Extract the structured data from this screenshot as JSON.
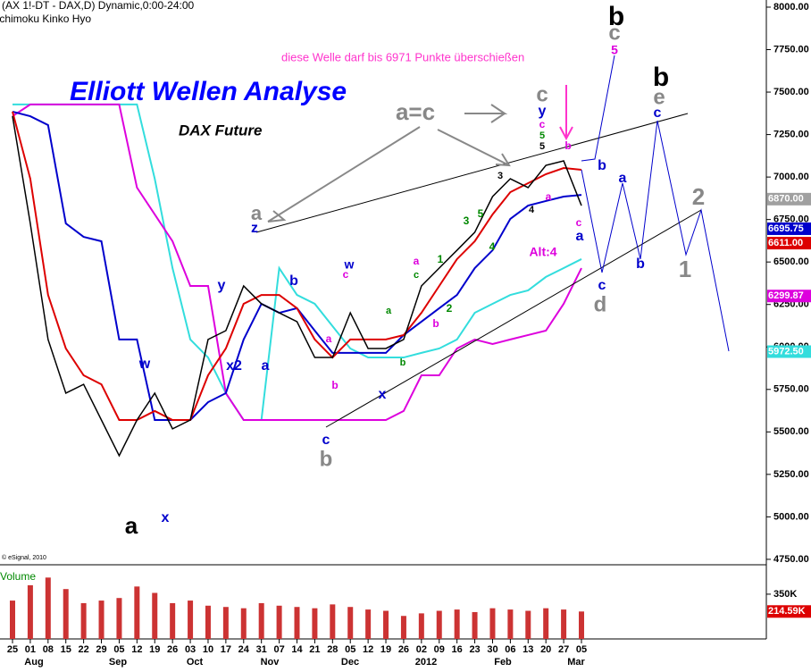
{
  "chart_data": {
    "type": "line",
    "header": "(AX 1!-DT - DAX,D) Dynamic,0:00-24:00",
    "indicator": "Ichimoku Kinko Hyo",
    "title": "Elliott Wellen Analyse",
    "subtitle": "DAX Future",
    "note": "diese Welle darf bis 6971 Punkte überschießen",
    "copyright": "© eSignal, 2010",
    "volume_label": "Volume",
    "categories": [
      "25",
      "01",
      "08",
      "15",
      "22",
      "29",
      "05",
      "12",
      "19",
      "26",
      "03",
      "10",
      "17",
      "24",
      "31",
      "07",
      "14",
      "21",
      "28",
      "05",
      "12",
      "19",
      "26",
      "02",
      "09",
      "16",
      "23",
      "30",
      "06",
      "13",
      "20",
      "27",
      "05"
    ],
    "months": [
      "Aug",
      "Sep",
      "Oct",
      "Nov",
      "Dec",
      "2012",
      "Feb",
      "Mar"
    ],
    "ylim": [
      4718,
      8042
    ],
    "yticks": [
      {
        "value": 4750,
        "label": "4750.00"
      },
      {
        "value": 5000,
        "label": "5000.00"
      },
      {
        "value": 5250,
        "label": "5250.00"
      },
      {
        "value": 5500,
        "label": "5500.00"
      },
      {
        "value": 5750,
        "label": "5750.00"
      },
      {
        "value": 6000,
        "label": "6000.00"
      },
      {
        "value": 6250,
        "label": "6250.00"
      },
      {
        "value": 6500,
        "label": "6500.00"
      },
      {
        "value": 6750,
        "label": "6750.00"
      },
      {
        "value": 7000,
        "label": "7000.00"
      },
      {
        "value": 7250,
        "label": "7250.00"
      },
      {
        "value": 7500,
        "label": "7500.00"
      },
      {
        "value": 7750,
        "label": "7750.00"
      },
      {
        "value": 8000,
        "label": "8000.00"
      }
    ],
    "price_markers": [
      {
        "value": 6870,
        "label": "6870.00",
        "color": "#a0a0a0"
      },
      {
        "value": 6695.75,
        "label": "6695.75",
        "color": "#0000cc"
      },
      {
        "value": 6611,
        "label": "6611.00",
        "color": "#dd0000"
      },
      {
        "value": 6299.87,
        "label": "6299.87",
        "color": "#dd00dd"
      },
      {
        "value": 5972.5,
        "label": "5972.50",
        "color": "#33dddd"
      }
    ],
    "series": [
      {
        "name": "Senkou A",
        "color": "#33dddd",
        "values": [
          7427,
          7427,
          7427,
          7427,
          7427,
          7427,
          7427,
          7427,
          6990,
          6464,
          6044,
          5938,
          5728,
          5570,
          5570,
          6464,
          6306,
          6254,
          6122,
          5991,
          5938,
          5938,
          5938,
          5965,
          5991,
          6044,
          6201,
          6254,
          6306,
          6333,
          6412,
          6464,
          6517
        ]
      },
      {
        "name": "Senkou B",
        "color": "#dd00dd",
        "values": [
          7358,
          7427,
          7427,
          7427,
          7427,
          7427,
          7427,
          6938,
          6780,
          6622,
          6359,
          6359,
          5728,
          5570,
          5570,
          5570,
          5570,
          5570,
          5570,
          5570,
          5570,
          5570,
          5623,
          5833,
          5833,
          5991,
          6044,
          6017,
          6044,
          6070,
          6096,
          6254,
          6464
        ]
      },
      {
        "name": "Kijun",
        "color": "#0000cc",
        "values": [
          7385,
          7358,
          7306,
          6727,
          6648,
          6622,
          6044,
          6044,
          5570,
          5570,
          5570,
          5675,
          5728,
          6044,
          6254,
          6201,
          6228,
          6096,
          5965,
          5965,
          5965,
          5965,
          6070,
          6149,
          6228,
          6306,
          6464,
          6569,
          6754,
          6832,
          6859,
          6885,
          6895
        ]
      },
      {
        "name": "Tenkan",
        "color": "#dd0000",
        "values": [
          7385,
          6990,
          6306,
          5991,
          5833,
          5780,
          5570,
          5570,
          5623,
          5570,
          5570,
          5833,
          5991,
          6254,
          6306,
          6306,
          6228,
          6044,
          5938,
          6044,
          6044,
          6044,
          6070,
          6201,
          6359,
          6517,
          6622,
          6780,
          6911,
          6964,
          7017,
          7053,
          7043
        ]
      },
      {
        "name": "DAX",
        "color": "#000000",
        "values": [
          7358,
          6727,
          6044,
          5728,
          5780,
          5570,
          5360,
          5570,
          5728,
          5518,
          5570,
          6044,
          6096,
          6359,
          6254,
          6201,
          6149,
          5938,
          5938,
          6201,
          5991,
          5991,
          6044,
          6359,
          6464,
          6569,
          6675,
          6885,
          6990,
          6938,
          7069,
          7095,
          6832
        ]
      }
    ],
    "volume": {
      "color": "#cc3333",
      "ylim": [
        0,
        580000
      ],
      "yticks": [
        {
          "value": 350000,
          "label": "350K"
        }
      ],
      "last": {
        "value": 214590,
        "label": "214.59K"
      },
      "values": [
        300000,
        420000,
        480000,
        390000,
        280000,
        300000,
        320000,
        410000,
        360000,
        280000,
        300000,
        260000,
        250000,
        240000,
        280000,
        260000,
        250000,
        240000,
        270000,
        250000,
        230000,
        220000,
        180000,
        200000,
        220000,
        230000,
        210000,
        240000,
        230000,
        220000,
        240000,
        230000,
        214590
      ]
    },
    "annotations": [
      {
        "text": "a=c",
        "color": "#888888"
      },
      {
        "text": "Alt:4",
        "color": "#dd00dd"
      },
      {
        "text": "a",
        "color": "#000000"
      },
      {
        "text": "x",
        "color": "#0000cc"
      },
      {
        "text": "w",
        "color": "#0000cc"
      },
      {
        "text": "y",
        "color": "#0000cc"
      },
      {
        "text": "x2",
        "color": "#0000cc"
      },
      {
        "text": "a",
        "color": "#0000cc"
      },
      {
        "text": "b",
        "color": "#0000cc"
      },
      {
        "text": "a",
        "color": "#888888"
      },
      {
        "text": "z",
        "color": "#0000cc"
      },
      {
        "text": "c",
        "color": "#0000cc"
      },
      {
        "text": "b",
        "color": "#888888"
      },
      {
        "text": "w",
        "color": "#0000cc"
      },
      {
        "text": "c",
        "color": "#dd00dd"
      },
      {
        "text": "a",
        "color": "#dd00dd"
      },
      {
        "text": "b",
        "color": "#dd00dd"
      },
      {
        "text": "x",
        "color": "#0000cc"
      },
      {
        "text": "a",
        "color": "#008800"
      },
      {
        "text": "b",
        "color": "#008800"
      },
      {
        "text": "a",
        "color": "#dd00dd"
      },
      {
        "text": "c",
        "color": "#008800"
      },
      {
        "text": "b",
        "color": "#dd00dd"
      },
      {
        "text": "1",
        "color": "#008800"
      },
      {
        "text": "2",
        "color": "#008800"
      },
      {
        "text": "3",
        "color": "#008800"
      },
      {
        "text": "4",
        "color": "#008800"
      },
      {
        "text": "5",
        "color": "#008800"
      },
      {
        "text": "c",
        "color": "#888888"
      },
      {
        "text": "y",
        "color": "#0000cc"
      },
      {
        "text": "c",
        "color": "#dd00dd"
      },
      {
        "text": "5",
        "color": "#008800"
      },
      {
        "text": "5",
        "color": "#000000"
      },
      {
        "text": "3",
        "color": "#000000"
      },
      {
        "text": "4",
        "color": "#000000"
      },
      {
        "text": "a",
        "color": "#dd00dd"
      },
      {
        "text": "b",
        "color": "#dd00dd"
      },
      {
        "text": "c",
        "color": "#dd00dd"
      },
      {
        "text": "a",
        "color": "#0000cc"
      },
      {
        "text": "b",
        "color": "#0000cc"
      },
      {
        "text": "a",
        "color": "#0000cc"
      },
      {
        "text": "b",
        "color": "#0000cc"
      },
      {
        "text": "c",
        "color": "#0000cc"
      },
      {
        "text": "d",
        "color": "#888888"
      },
      {
        "text": "1",
        "color": "#888888"
      },
      {
        "text": "2",
        "color": "#888888"
      },
      {
        "text": "b",
        "color": "#000000"
      },
      {
        "text": "c",
        "color": "#888888"
      },
      {
        "text": "5",
        "color": "#dd00dd"
      },
      {
        "text": "b",
        "color": "#000000"
      },
      {
        "text": "e",
        "color": "#888888"
      },
      {
        "text": "c",
        "color": "#0000cc"
      }
    ]
  }
}
